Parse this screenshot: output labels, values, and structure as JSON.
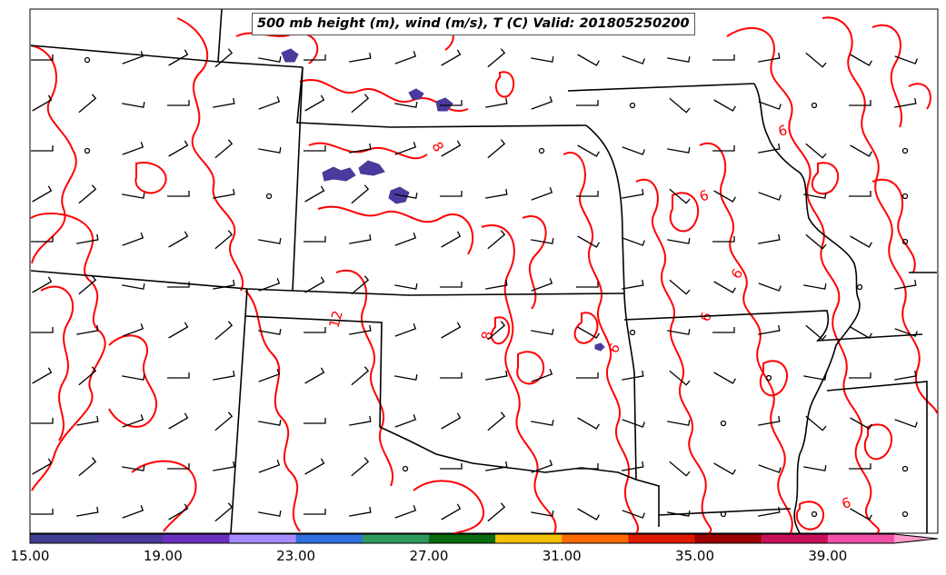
{
  "title": "500 mb height (m), wind (m/s), T (C) Valid: 201805250200",
  "colorbar": {
    "labels": [
      "15.00",
      "19.00",
      "23.00",
      "27.00",
      "31.00",
      "35.00",
      "39.00"
    ],
    "colors": [
      "#3f3f95",
      "#4a3a9e",
      "#6a30c0",
      "#a78cff",
      "#2f6fe0",
      "#2e9a5e",
      "#0a6b12",
      "#f2c200",
      "#ff6a00",
      "#e01a00",
      "#9c0000",
      "#c8105a",
      "#f050a8",
      "#ff9acb"
    ]
  },
  "contour_labels": [
    "6",
    "6",
    "6",
    "6",
    "8",
    "8",
    "12",
    "6",
    "6"
  ],
  "styles": {
    "contour_color": "#ff0000",
    "border_color": "#000000",
    "barb_color": "#000000"
  }
}
